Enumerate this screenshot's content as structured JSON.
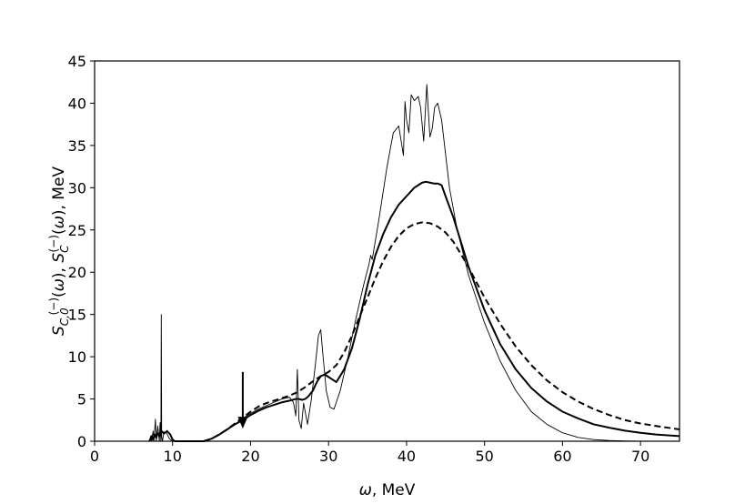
{
  "chart_data": {
    "type": "line",
    "title": "",
    "xlabel": "ω, MeV",
    "ylabel": "S_{C,0}^{(−)}(ω), S_C^{(−)}(ω), MeV",
    "xlim": [
      0,
      75
    ],
    "ylim": [
      0,
      45
    ],
    "xticks": [
      0,
      10,
      20,
      30,
      40,
      50,
      60,
      70
    ],
    "yticks": [
      0,
      5,
      10,
      15,
      20,
      25,
      30,
      35,
      40,
      45
    ],
    "grid": false,
    "legend": "none",
    "annotations": [
      {
        "kind": "arrow",
        "x": 19.0,
        "y_start": 8.2,
        "y_end": 1.6
      }
    ],
    "series": [
      {
        "style": "thin-solid",
        "x": [
          7.0,
          7.2,
          7.3,
          7.5,
          7.6,
          7.8,
          7.9,
          8.1,
          8.3,
          8.4,
          8.5,
          8.55,
          8.6,
          8.7,
          8.9,
          9.2,
          9.6,
          10.0,
          10.3,
          14.0,
          15.0,
          16.0,
          17.0,
          18.0,
          19.0,
          20.0,
          21.0,
          22.0,
          23.0,
          24.0,
          25.0,
          25.5,
          25.8,
          26.0,
          26.2,
          26.5,
          26.8,
          27.0,
          27.3,
          27.8,
          28.3,
          28.7,
          29.0,
          29.3,
          29.7,
          30.2,
          30.7,
          31.5,
          32.5,
          33.5,
          34.5,
          35.2,
          35.4,
          35.6,
          36.5,
          37.5,
          38.3,
          39.0,
          39.4,
          39.6,
          39.8,
          40.0,
          40.3,
          40.6,
          41.0,
          41.5,
          41.8,
          42.2,
          42.6,
          42.8,
          43.0,
          43.3,
          43.6,
          44.0,
          44.5,
          45.0,
          45.5,
          46.5,
          48.0,
          50.0,
          52.0,
          54.0,
          56.0,
          58.0,
          60.0,
          62.0,
          64.0,
          66.0,
          68.0,
          70.0,
          72.0,
          75.0
        ],
        "values": [
          0.0,
          0.6,
          0.0,
          1.2,
          0.0,
          2.6,
          0.0,
          1.8,
          0.0,
          2.2,
          0.0,
          15.0,
          0.5,
          0.0,
          1.1,
          1.0,
          0.3,
          0.0,
          0.0,
          0.0,
          0.3,
          0.8,
          1.4,
          2.0,
          2.7,
          3.3,
          3.8,
          4.2,
          4.6,
          5.0,
          5.2,
          4.6,
          3.0,
          8.5,
          2.5,
          1.5,
          4.5,
          3.5,
          2.0,
          5.0,
          9.0,
          12.5,
          13.2,
          10.0,
          6.0,
          4.0,
          3.8,
          6.0,
          10.0,
          14.5,
          18.5,
          21.0,
          22.0,
          21.5,
          26.5,
          32.5,
          36.5,
          37.3,
          35.0,
          33.8,
          40.2,
          38.0,
          36.5,
          41.0,
          40.3,
          40.8,
          39.5,
          35.5,
          42.2,
          39.0,
          36.0,
          37.0,
          39.5,
          40.0,
          38.0,
          34.0,
          30.0,
          25.0,
          19.5,
          14.0,
          9.5,
          6.0,
          3.5,
          2.0,
          1.0,
          0.45,
          0.2,
          0.08,
          0.03,
          0.01,
          0.0,
          0.0
        ]
      },
      {
        "style": "thick-solid",
        "x": [
          7.0,
          7.2,
          7.3,
          7.5,
          7.7,
          7.9,
          8.1,
          8.3,
          8.6,
          8.9,
          9.3,
          9.7,
          10.0,
          10.3,
          14.0,
          15.0,
          16.0,
          17.0,
          18.0,
          19.0,
          20.0,
          21.0,
          22.0,
          23.0,
          24.0,
          25.0,
          25.8,
          26.2,
          26.6,
          27.0,
          27.4,
          28.0,
          28.5,
          29.0,
          29.5,
          30.0,
          30.5,
          31.0,
          32.0,
          33.0,
          34.0,
          35.0,
          36.0,
          37.0,
          38.0,
          39.0,
          40.0,
          41.0,
          42.0,
          42.5,
          43.0,
          43.5,
          44.0,
          44.5,
          45.0,
          46.0,
          47.0,
          48.0,
          50.0,
          52.0,
          54.0,
          56.0,
          58.0,
          60.0,
          62.0,
          64.0,
          66.0,
          68.0,
          70.0,
          72.0,
          75.0
        ],
        "values": [
          0.0,
          0.3,
          0.6,
          0.2,
          0.8,
          0.4,
          1.0,
          0.6,
          1.2,
          0.9,
          1.2,
          0.8,
          0.2,
          0.0,
          0.0,
          0.3,
          0.8,
          1.4,
          2.0,
          2.5,
          3.1,
          3.6,
          4.0,
          4.3,
          4.6,
          4.8,
          5.0,
          5.0,
          4.9,
          5.0,
          5.3,
          6.0,
          7.0,
          7.7,
          7.9,
          7.6,
          7.3,
          7.0,
          8.5,
          11.0,
          14.5,
          18.5,
          22.0,
          24.5,
          26.5,
          28.0,
          29.0,
          30.0,
          30.6,
          30.7,
          30.6,
          30.5,
          30.5,
          30.3,
          29.0,
          26.5,
          23.5,
          20.5,
          15.5,
          11.5,
          8.5,
          6.3,
          4.7,
          3.5,
          2.7,
          2.0,
          1.6,
          1.25,
          1.0,
          0.8,
          0.6
        ]
      },
      {
        "style": "dashed",
        "x": [
          14.0,
          15.0,
          16.0,
          17.0,
          18.0,
          19.0,
          20.0,
          21.0,
          22.0,
          23.0,
          24.0,
          25.0,
          26.0,
          27.0,
          28.0,
          29.0,
          30.0,
          31.0,
          32.0,
          33.0,
          34.0,
          35.0,
          36.0,
          37.0,
          38.0,
          39.0,
          40.0,
          41.0,
          42.0,
          43.0,
          44.0,
          45.0,
          46.0,
          47.0,
          48.0,
          50.0,
          52.0,
          54.0,
          56.0,
          58.0,
          60.0,
          62.0,
          64.0,
          66.0,
          68.0,
          70.0,
          72.0,
          75.0
        ],
        "values": [
          0.0,
          0.3,
          0.8,
          1.4,
          2.1,
          2.8,
          3.5,
          4.1,
          4.5,
          4.8,
          5.1,
          5.4,
          5.8,
          6.4,
          7.1,
          7.7,
          8.2,
          9.0,
          10.5,
          12.5,
          14.8,
          17.0,
          19.3,
          21.3,
          23.0,
          24.3,
          25.2,
          25.7,
          25.9,
          25.8,
          25.4,
          24.7,
          23.6,
          22.1,
          20.5,
          17.0,
          13.9,
          11.2,
          9.0,
          7.2,
          5.8,
          4.7,
          3.8,
          3.1,
          2.5,
          2.1,
          1.8,
          1.4
        ]
      }
    ]
  }
}
